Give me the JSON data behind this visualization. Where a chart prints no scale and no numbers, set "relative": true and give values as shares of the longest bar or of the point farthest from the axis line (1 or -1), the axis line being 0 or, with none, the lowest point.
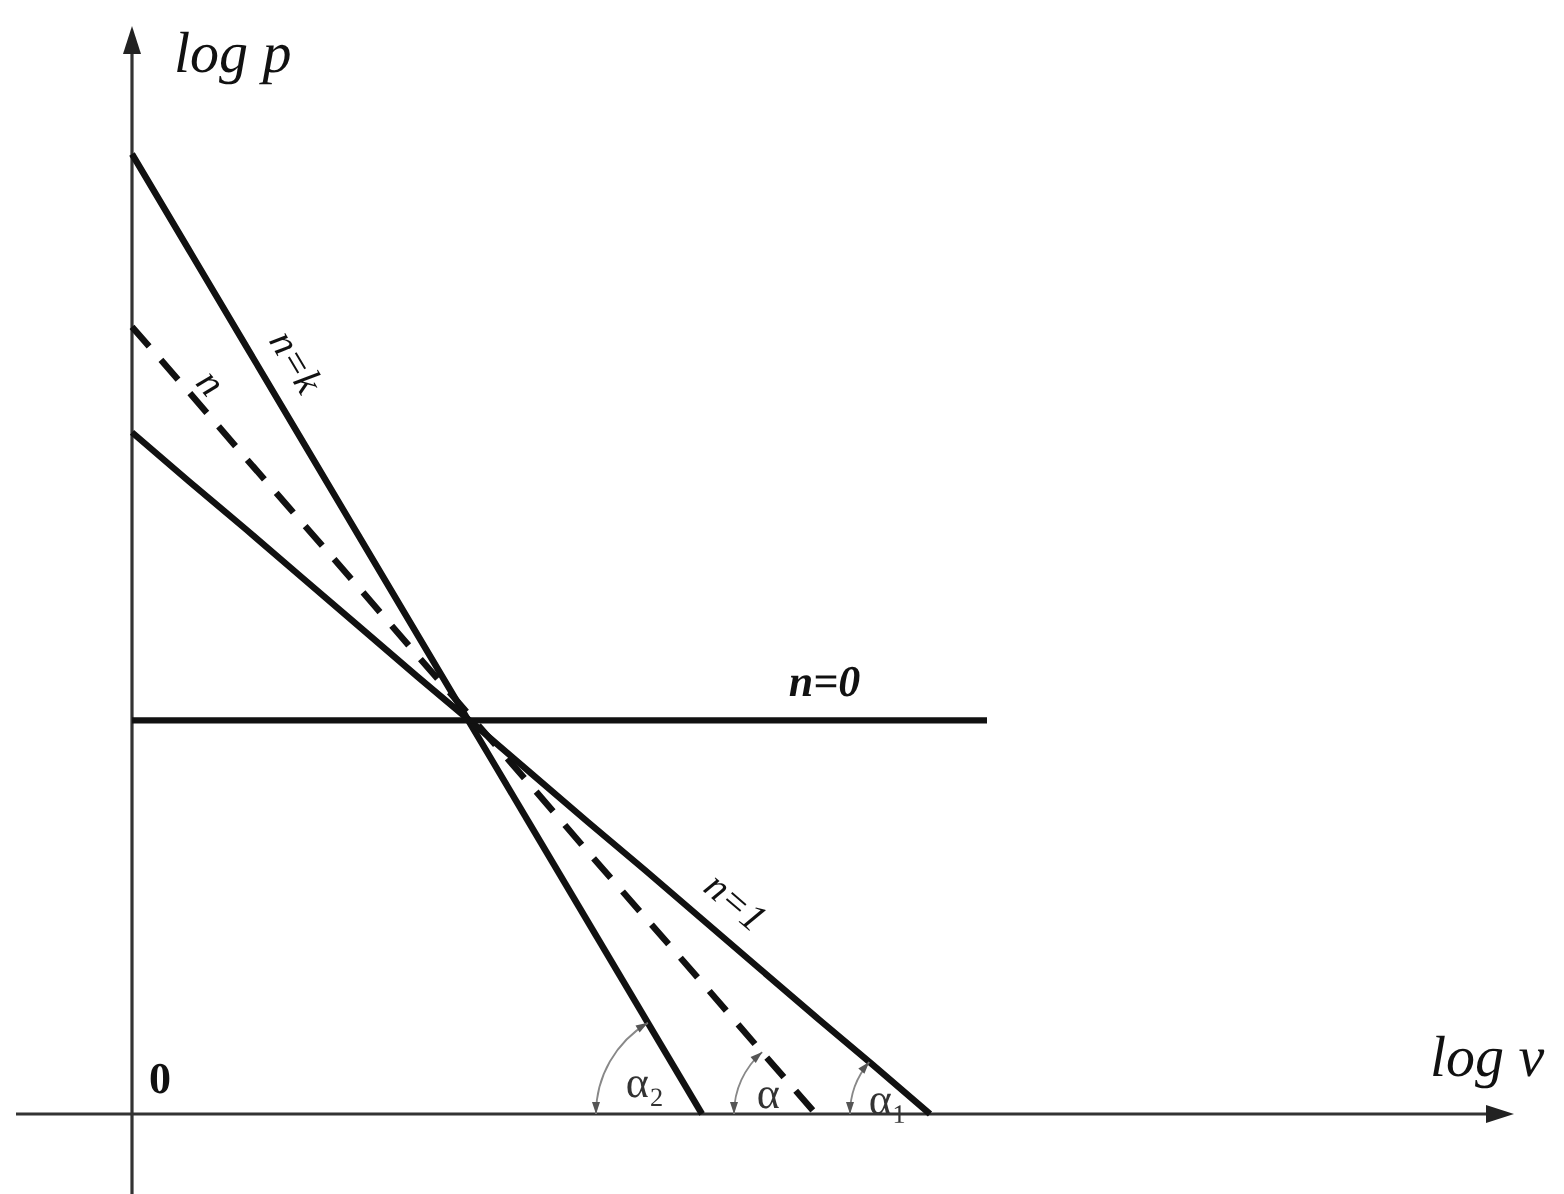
{
  "chart_data": {
    "type": "line",
    "xlabel": "log v",
    "ylabel": "log p",
    "relative": true,
    "line_style": "solid",
    "categories": [
      null,
      null,
      null,
      null,
      null,
      null,
      null,
      null,
      null,
      null,
      null,
      null,
      null,
      null,
      null,
      null,
      null,
      null,
      null,
      null,
      null,
      null,
      null,
      null,
      null
    ],
    "series": [
      {
        "name": "n=k",
        "color": "#111111",
        "values": [
          1,
          0.9,
          0.8,
          0.7,
          0.6,
          0.5,
          0.4,
          0.3,
          0.2,
          0.1,
          0,
          null,
          null,
          null,
          null,
          null,
          null,
          null,
          null,
          null,
          null,
          null,
          null,
          null,
          null
        ]
      },
      {
        "name": "n",
        "color": "#111111",
        "line_style": "dashed",
        "values": [
          0.82,
          0.752,
          0.683,
          0.615,
          0.547,
          0.478,
          0.41,
          0.342,
          0.273,
          0.205,
          0.137,
          0.068,
          0,
          null,
          null,
          null,
          null,
          null,
          null,
          null,
          null,
          null,
          null,
          null,
          null
        ]
      },
      {
        "name": "n=1",
        "color": "#111111",
        "values": [
          0.71,
          0.659,
          0.609,
          0.558,
          0.507,
          0.456,
          0.406,
          0.355,
          0.304,
          0.254,
          0.203,
          0.152,
          0.101,
          0.051,
          0,
          null,
          null,
          null,
          null,
          null,
          null,
          null,
          null,
          null,
          null
        ]
      },
      {
        "name": "n=0",
        "color": "#111111",
        "values": [
          0.41,
          0.41,
          0.41,
          0.41,
          0.41,
          0.41,
          0.41,
          0.41,
          0.41,
          0.41,
          0.41,
          0.41,
          0.41,
          0.41,
          0.41,
          0.41,
          null,
          null,
          null,
          null,
          null,
          null,
          null,
          null,
          null
        ]
      }
    ],
    "annotations": [
      "0",
      "α₂",
      "α",
      "α₁"
    ]
  }
}
